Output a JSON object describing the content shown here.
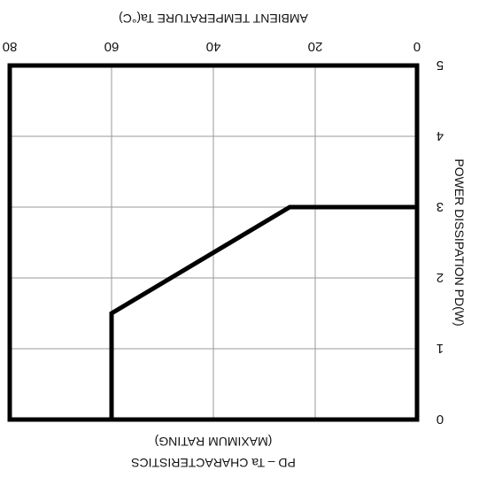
{
  "chart_data": {
    "type": "line",
    "xlabel": "AMBIENT TEMPERATURE  Ta(°C)",
    "ylabel": "POWER DISSIPATION  PD(W)",
    "caption_line1": "(MAXIMUM RATING)",
    "caption_line2": "PD – Ta CHARACTERISTICS",
    "xlim": [
      80,
      0
    ],
    "ylim": [
      0,
      5
    ],
    "x_ticks": [
      80,
      60,
      40,
      20,
      0
    ],
    "y_ticks": [
      0,
      1,
      2,
      3,
      4,
      5
    ],
    "x_tick_labels": [
      "80",
      "60",
      "40",
      "20",
      "0"
    ],
    "y_tick_labels": [
      "0",
      "1",
      "2",
      "3",
      "4",
      "5"
    ],
    "grid": true,
    "image_orientation": "rotated-180",
    "series": [
      {
        "x": [
          0,
          25,
          60,
          60
        ],
        "y": [
          3,
          3,
          1.5,
          0
        ],
        "color": "#000000"
      }
    ]
  }
}
